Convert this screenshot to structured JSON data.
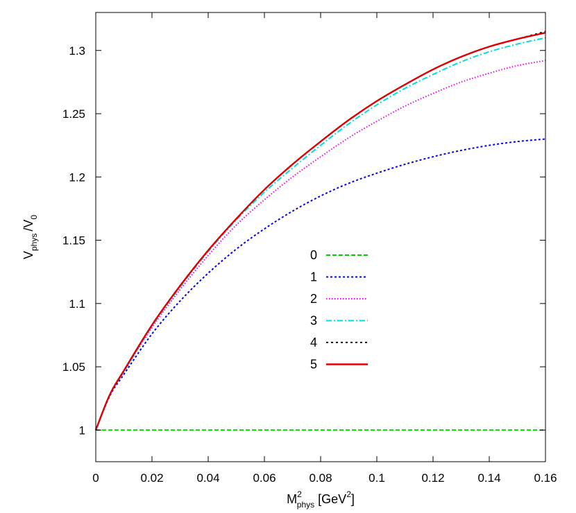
{
  "chart_data": {
    "type": "line",
    "xlabel": "M",
    "xlabel_sup": "2",
    "xlabel_sub": "phys",
    "xlabel_unit_pre": "[GeV",
    "xlabel_unit_sup": "2",
    "xlabel_unit_post": "]",
    "ylabel": "V",
    "ylabel_sub": "phys",
    "ylabel_tail": "/V",
    "ylabel_tail_sub": "0",
    "xlim": [
      0,
      0.16
    ],
    "ylim": [
      0.975,
      1.33
    ],
    "x_ticks": [
      0,
      0.02,
      0.04,
      0.06,
      0.08,
      0.1,
      0.12,
      0.14,
      0.16
    ],
    "x_tick_labels": [
      "0",
      "0.02",
      "0.04",
      "0.06",
      "0.08",
      "0.1",
      "0.12",
      "0.14",
      "0.16"
    ],
    "y_ticks": [
      1,
      1.05,
      1.1,
      1.15,
      1.2,
      1.25,
      1.3
    ],
    "y_tick_labels": [
      "1",
      "1.05",
      "1.1",
      "1.15",
      "1.2",
      "1.25",
      "1.3"
    ],
    "grid": false,
    "legend_position": "center",
    "x": [
      0,
      0.005,
      0.01,
      0.02,
      0.03,
      0.04,
      0.05,
      0.06,
      0.07,
      0.08,
      0.09,
      0.1,
      0.11,
      0.12,
      0.13,
      0.14,
      0.15,
      0.16
    ],
    "series": [
      {
        "name": "0",
        "color": "#00cc00",
        "dash": "6,3",
        "values": [
          1,
          1,
          1,
          1,
          1,
          1,
          1,
          1,
          1,
          1,
          1,
          1,
          1,
          1,
          1,
          1,
          1,
          1
        ]
      },
      {
        "name": "1",
        "color": "#0000ee",
        "dash": "3,3",
        "values": [
          1,
          1.027,
          1.044,
          1.076,
          1.102,
          1.124,
          1.143,
          1.159,
          1.173,
          1.185,
          1.195,
          1.203,
          1.21,
          1.216,
          1.221,
          1.225,
          1.228,
          1.23
        ]
      },
      {
        "name": "2",
        "color": "#ee00ee",
        "dash": "1.5,2.5",
        "values": [
          1,
          1.028,
          1.046,
          1.081,
          1.111,
          1.138,
          1.162,
          1.182,
          1.2,
          1.216,
          1.231,
          1.244,
          1.256,
          1.266,
          1.275,
          1.282,
          1.288,
          1.292
        ]
      },
      {
        "name": "3",
        "color": "#00dddd",
        "dash": "8,3,2,3",
        "values": [
          1,
          1.028,
          1.046,
          1.082,
          1.113,
          1.141,
          1.166,
          1.188,
          1.207,
          1.225,
          1.242,
          1.257,
          1.27,
          1.281,
          1.291,
          1.299,
          1.305,
          1.31
        ]
      },
      {
        "name": "4",
        "color": "#000000",
        "dash": "3,4",
        "values": [
          1,
          1.028,
          1.047,
          1.083,
          1.114,
          1.142,
          1.167,
          1.19,
          1.21,
          1.228,
          1.245,
          1.26,
          1.273,
          1.285,
          1.295,
          1.303,
          1.309,
          1.315
        ]
      },
      {
        "name": "5",
        "color": "#e00000",
        "dash": "",
        "values": [
          1,
          1.028,
          1.047,
          1.083,
          1.114,
          1.142,
          1.167,
          1.19,
          1.21,
          1.228,
          1.245,
          1.26,
          1.273,
          1.285,
          1.295,
          1.303,
          1.309,
          1.314
        ]
      }
    ]
  }
}
